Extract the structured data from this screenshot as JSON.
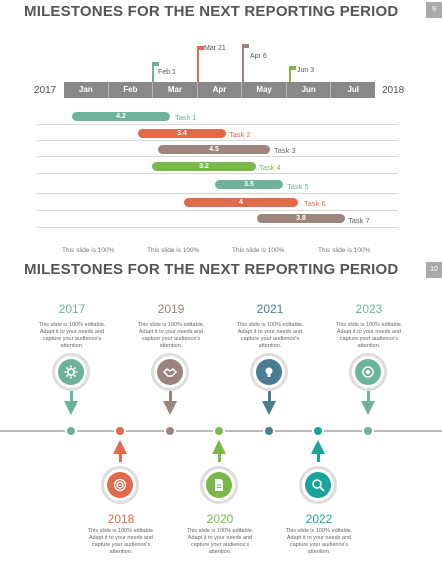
{
  "slide1": {
    "title": "MILESTONES FOR THE NEXT REPORTING PERIOD",
    "page_number": "9",
    "year_start": "2017",
    "year_end": "2018",
    "months": [
      "Jan",
      "Feb",
      "Mar",
      "Apr",
      "May",
      "Jun",
      "Jul"
    ],
    "milestones": [
      {
        "label": "Feb 1",
        "color": "#6db39a"
      },
      {
        "label": "Mar 21",
        "color": "#e06a4b"
      },
      {
        "label": "Apr  6",
        "color": "#9b857c"
      },
      {
        "label": "Jun 3",
        "color": "#7ab84a"
      }
    ],
    "tasks": [
      {
        "name": "Task 1",
        "value": "4.2",
        "color": "#6db39a"
      },
      {
        "name": "Task 2",
        "value": "3.4",
        "color": "#e06a4b"
      },
      {
        "name": "Task 3",
        "value": "4.5",
        "color": "#9b857c"
      },
      {
        "name": "Task 4",
        "value": "3.2",
        "color": "#7ab84a"
      },
      {
        "name": "Task 5",
        "value": "3.5",
        "color": "#6db39a"
      },
      {
        "name": "Task 6",
        "value": "4",
        "color": "#e06a4b"
      },
      {
        "name": "Task 7",
        "value": "3.8",
        "color": "#9b857c"
      }
    ],
    "footnotes": [
      "This slide is 100%",
      "This slide is 100%",
      "This slide is 100%",
      "This slide is 100%"
    ]
  },
  "slide2": {
    "title": "MILESTONES FOR THE NEXT REPORTING PERIOD",
    "page_number": "10",
    "description": "This slide is 100% editable. Adapt it to your needs and capture your audience's attention.",
    "top_items": [
      {
        "year": "2017",
        "color": "#6db39a",
        "icon": "gear-icon"
      },
      {
        "year": "2019",
        "color": "#9b857c",
        "icon": "handshake-icon"
      },
      {
        "year": "2021",
        "color": "#4a7d94",
        "icon": "lightbulb-icon"
      },
      {
        "year": "2023",
        "color": "#6db39a",
        "icon": "target-icon"
      }
    ],
    "bottom_items": [
      {
        "year": "2018",
        "color": "#e06a4b",
        "icon": "bullseye-icon"
      },
      {
        "year": "2020",
        "color": "#7ab84a",
        "icon": "document-icon"
      },
      {
        "year": "2022",
        "color": "#1aa39a",
        "icon": "magnifier-icon"
      }
    ]
  }
}
